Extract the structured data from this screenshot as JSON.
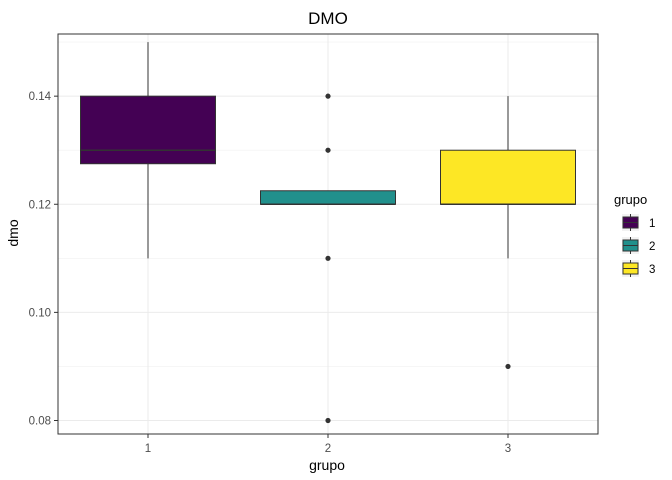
{
  "chart_data": {
    "type": "boxplot",
    "title": "DMO",
    "xlabel": "grupo",
    "ylabel": "dmo",
    "categories": [
      "1",
      "2",
      "3"
    ],
    "ylim": [
      0.0775,
      0.1515
    ],
    "yticks": [
      0.08,
      0.1,
      0.12,
      0.14
    ],
    "ytick_labels": [
      "0.08",
      "0.10",
      "0.12",
      "0.14"
    ],
    "grid": true,
    "legend": {
      "title": "grupo",
      "position": "right",
      "entries": [
        {
          "label": "1",
          "color": "#440154"
        },
        {
          "label": "2",
          "color": "#21908C"
        },
        {
          "label": "3",
          "color": "#FDE725"
        }
      ]
    },
    "boxes": [
      {
        "group": "1",
        "lower_whisker": 0.11,
        "q1": 0.1275,
        "median": 0.13,
        "q3": 0.14,
        "upper_whisker": 0.15,
        "outliers": [],
        "color": "#440154"
      },
      {
        "group": "2",
        "lower_whisker": 0.12,
        "q1": 0.12,
        "median": 0.12,
        "q3": 0.1225,
        "upper_whisker": 0.1225,
        "outliers": [
          0.14,
          0.13,
          0.11,
          0.08
        ],
        "color": "#21908C"
      },
      {
        "group": "3",
        "lower_whisker": 0.11,
        "q1": 0.12,
        "median": 0.12,
        "q3": 0.13,
        "upper_whisker": 0.14,
        "outliers": [
          0.09
        ],
        "color": "#FDE725"
      }
    ]
  }
}
